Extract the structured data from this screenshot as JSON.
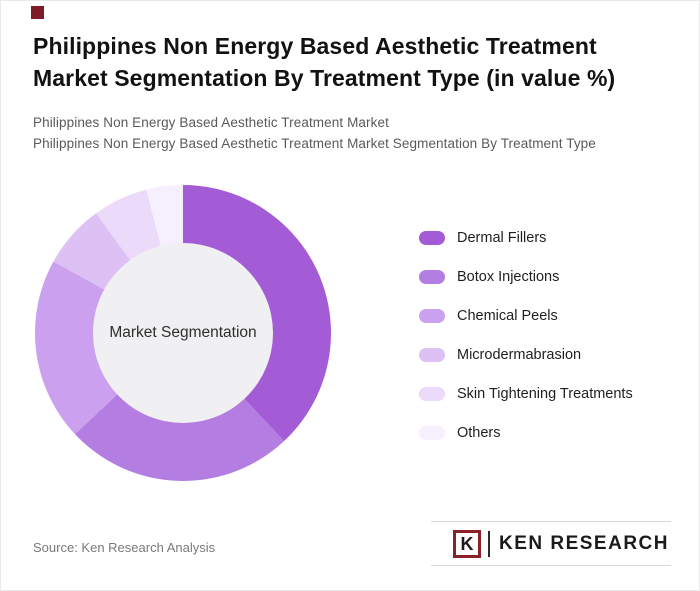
{
  "header": {
    "title": "Philippines Non Energy Based Aesthetic Treatment\nMarket Segmentation By Treatment Type (in value %)",
    "subtitle1": "Philippines Non Energy Based Aesthetic Treatment Market",
    "subtitle2": "Philippines Non Energy Based Aesthetic Treatment Market Segmentation By Treatment Type"
  },
  "brand": {
    "accent_color": "#7d1c26"
  },
  "chart_data": {
    "type": "pie",
    "subtype": "donut",
    "title": "Philippines Non Energy Based Aesthetic Treatment Market Segmentation By Treatment Type (in value %)",
    "center_label": "Market Segmentation",
    "center_color": "#f0eff1",
    "legend_position": "right",
    "start_angle_deg": 0,
    "direction": "clockwise",
    "segments": [
      {
        "label": "Dermal Fillers",
        "value": 38,
        "color": "#a45cd6"
      },
      {
        "label": "Botox Injections",
        "value": 25,
        "color": "#b47de2"
      },
      {
        "label": "Chemical Peels",
        "value": 20,
        "color": "#cba1ef"
      },
      {
        "label": "Microdermabrasion",
        "value": 7,
        "color": "#ddc1f5"
      },
      {
        "label": "Skin Tightening Treatments",
        "value": 6,
        "color": "#ebdafa"
      },
      {
        "label": "Others",
        "value": 4,
        "color": "#f6effd"
      }
    ]
  },
  "footer": {
    "source": "Source: Ken Research Analysis",
    "logo": {
      "k": "K",
      "text": "KEN RESEARCH"
    }
  }
}
